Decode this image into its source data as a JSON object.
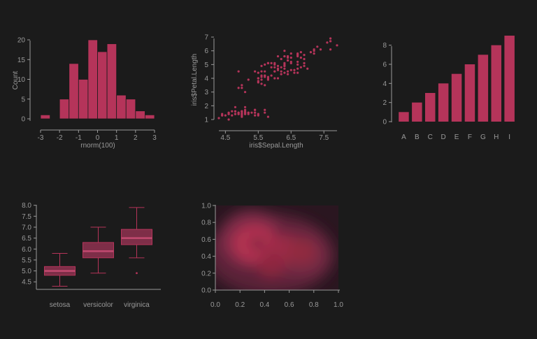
{
  "theme": {
    "background": "#1b1b1b",
    "accent": "#b5345a",
    "axis": "#9a9a9a"
  },
  "chart_data": [
    {
      "type": "bar",
      "subtype": "histogram",
      "xlabel": "rnorm(100)",
      "ylabel": "Count",
      "bins": [
        {
          "from": -3.0,
          "to": -2.5,
          "count": 1
        },
        {
          "from": -2.5,
          "to": -2.0,
          "count": 0
        },
        {
          "from": -2.0,
          "to": -1.5,
          "count": 5
        },
        {
          "from": -1.5,
          "to": -1.0,
          "count": 14
        },
        {
          "from": -1.0,
          "to": -0.5,
          "count": 10
        },
        {
          "from": -0.5,
          "to": 0.0,
          "count": 20
        },
        {
          "from": 0.0,
          "to": 0.5,
          "count": 17
        },
        {
          "from": 0.5,
          "to": 1.0,
          "count": 19
        },
        {
          "from": 1.0,
          "to": 1.5,
          "count": 6
        },
        {
          "from": 1.5,
          "to": 2.0,
          "count": 5
        },
        {
          "from": 2.0,
          "to": 2.5,
          "count": 2
        },
        {
          "from": 2.5,
          "to": 3.0,
          "count": 1
        }
      ],
      "xticks": [
        -3,
        -2,
        -1,
        0,
        1,
        2,
        3
      ],
      "yticks": [
        0,
        5,
        10,
        15,
        20
      ],
      "xlim": [
        -3,
        3
      ],
      "ylim": [
        0,
        20
      ]
    },
    {
      "type": "scatter",
      "xlabel": "iris$Sepal.Length",
      "ylabel": "iris$Petal.Length",
      "xticks": [
        4.5,
        5.5,
        6.5,
        7.5
      ],
      "yticks": [
        1,
        2,
        3,
        4,
        5,
        6,
        7
      ],
      "xlim": [
        4.3,
        7.9
      ],
      "ylim": [
        1,
        6.9
      ],
      "points": [
        [
          5.1,
          1.4
        ],
        [
          4.9,
          1.4
        ],
        [
          4.7,
          1.3
        ],
        [
          4.6,
          1.5
        ],
        [
          5.0,
          1.4
        ],
        [
          5.4,
          1.7
        ],
        [
          4.6,
          1.4
        ],
        [
          5.0,
          1.5
        ],
        [
          4.4,
          1.4
        ],
        [
          4.9,
          1.5
        ],
        [
          5.4,
          1.5
        ],
        [
          4.8,
          1.6
        ],
        [
          4.8,
          1.4
        ],
        [
          4.3,
          1.1
        ],
        [
          5.8,
          1.2
        ],
        [
          5.7,
          1.5
        ],
        [
          5.4,
          1.3
        ],
        [
          5.1,
          1.4
        ],
        [
          5.7,
          1.7
        ],
        [
          5.1,
          1.5
        ],
        [
          5.4,
          1.7
        ],
        [
          5.1,
          1.5
        ],
        [
          4.6,
          1.0
        ],
        [
          5.1,
          1.7
        ],
        [
          4.8,
          1.9
        ],
        [
          5.0,
          1.6
        ],
        [
          5.0,
          1.6
        ],
        [
          5.2,
          1.5
        ],
        [
          5.2,
          1.4
        ],
        [
          4.7,
          1.6
        ],
        [
          4.8,
          1.6
        ],
        [
          5.4,
          1.5
        ],
        [
          5.2,
          1.5
        ],
        [
          5.5,
          1.4
        ],
        [
          4.9,
          1.5
        ],
        [
          5.0,
          1.2
        ],
        [
          5.5,
          1.3
        ],
        [
          4.9,
          1.4
        ],
        [
          4.4,
          1.3
        ],
        [
          5.1,
          1.5
        ],
        [
          5.0,
          1.3
        ],
        [
          4.5,
          1.3
        ],
        [
          4.4,
          1.3
        ],
        [
          5.0,
          1.6
        ],
        [
          5.1,
          1.9
        ],
        [
          4.8,
          1.4
        ],
        [
          5.1,
          1.6
        ],
        [
          4.6,
          1.4
        ],
        [
          5.3,
          1.5
        ],
        [
          5.0,
          1.4
        ],
        [
          7.0,
          4.7
        ],
        [
          6.4,
          4.5
        ],
        [
          6.9,
          4.9
        ],
        [
          5.5,
          4.0
        ],
        [
          6.5,
          4.6
        ],
        [
          5.7,
          4.5
        ],
        [
          6.3,
          4.7
        ],
        [
          4.9,
          3.3
        ],
        [
          6.6,
          4.6
        ],
        [
          5.2,
          3.9
        ],
        [
          5.0,
          3.5
        ],
        [
          5.9,
          4.2
        ],
        [
          6.0,
          4.0
        ],
        [
          6.1,
          4.7
        ],
        [
          5.6,
          3.6
        ],
        [
          6.7,
          4.4
        ],
        [
          5.6,
          4.5
        ],
        [
          5.8,
          4.1
        ],
        [
          6.2,
          4.5
        ],
        [
          5.6,
          3.9
        ],
        [
          5.9,
          4.8
        ],
        [
          6.1,
          4.0
        ],
        [
          6.3,
          4.9
        ],
        [
          6.1,
          4.7
        ],
        [
          6.4,
          4.3
        ],
        [
          6.6,
          4.4
        ],
        [
          6.8,
          4.8
        ],
        [
          6.7,
          5.0
        ],
        [
          6.0,
          4.5
        ],
        [
          5.7,
          3.5
        ],
        [
          5.5,
          3.8
        ],
        [
          5.5,
          3.7
        ],
        [
          5.8,
          3.9
        ],
        [
          6.0,
          5.1
        ],
        [
          5.4,
          4.5
        ],
        [
          6.0,
          4.5
        ],
        [
          6.7,
          4.7
        ],
        [
          6.3,
          4.4
        ],
        [
          5.6,
          4.1
        ],
        [
          5.5,
          4.0
        ],
        [
          5.5,
          4.4
        ],
        [
          6.1,
          4.6
        ],
        [
          5.8,
          4.0
        ],
        [
          5.0,
          3.3
        ],
        [
          5.6,
          4.2
        ],
        [
          5.7,
          4.2
        ],
        [
          5.7,
          4.2
        ],
        [
          6.2,
          4.3
        ],
        [
          5.1,
          3.0
        ],
        [
          5.7,
          4.1
        ],
        [
          6.3,
          6.0
        ],
        [
          5.8,
          5.1
        ],
        [
          7.1,
          5.9
        ],
        [
          6.3,
          5.6
        ],
        [
          6.5,
          5.8
        ],
        [
          7.6,
          6.6
        ],
        [
          4.9,
          4.5
        ],
        [
          7.3,
          6.3
        ],
        [
          6.7,
          5.8
        ],
        [
          7.2,
          6.1
        ],
        [
          6.5,
          5.1
        ],
        [
          6.4,
          5.3
        ],
        [
          6.8,
          5.5
        ],
        [
          5.7,
          5.0
        ],
        [
          5.8,
          5.1
        ],
        [
          6.4,
          5.3
        ],
        [
          6.5,
          5.5
        ],
        [
          7.7,
          6.7
        ],
        [
          7.7,
          6.9
        ],
        [
          6.0,
          5.0
        ],
        [
          6.9,
          5.7
        ],
        [
          5.6,
          4.9
        ],
        [
          7.7,
          6.7
        ],
        [
          6.3,
          4.9
        ],
        [
          6.7,
          5.7
        ],
        [
          7.2,
          6.0
        ],
        [
          6.2,
          4.8
        ],
        [
          6.1,
          4.9
        ],
        [
          6.4,
          5.6
        ],
        [
          7.2,
          5.8
        ],
        [
          7.4,
          6.1
        ],
        [
          7.9,
          6.4
        ],
        [
          6.4,
          5.6
        ],
        [
          6.3,
          5.1
        ],
        [
          6.1,
          5.6
        ],
        [
          7.7,
          6.1
        ],
        [
          6.3,
          5.6
        ],
        [
          6.4,
          5.5
        ],
        [
          6.0,
          4.8
        ],
        [
          6.9,
          5.4
        ],
        [
          6.7,
          5.6
        ],
        [
          6.9,
          5.1
        ],
        [
          5.8,
          5.1
        ],
        [
          6.8,
          5.9
        ],
        [
          6.7,
          5.7
        ],
        [
          6.7,
          5.2
        ],
        [
          6.3,
          5.0
        ],
        [
          6.5,
          5.2
        ],
        [
          6.2,
          5.4
        ],
        [
          5.9,
          5.1
        ]
      ]
    },
    {
      "type": "bar",
      "categories": [
        "A",
        "B",
        "C",
        "D",
        "E",
        "F",
        "G",
        "H",
        "I"
      ],
      "values": [
        1,
        2,
        3,
        4,
        5,
        6,
        7,
        8,
        9
      ],
      "yticks": [
        0,
        2,
        4,
        6,
        8
      ],
      "ylim": [
        0,
        9
      ]
    },
    {
      "type": "box",
      "categories": [
        "setosa",
        "versicolor",
        "virginica"
      ],
      "boxes": [
        {
          "min": 4.3,
          "q1": 4.8,
          "median": 5.0,
          "q3": 5.2,
          "max": 5.8,
          "outliers": []
        },
        {
          "min": 4.9,
          "q1": 5.6,
          "median": 5.9,
          "q3": 6.3,
          "max": 7.0,
          "outliers": []
        },
        {
          "min": 5.6,
          "q1": 6.2,
          "median": 6.5,
          "q3": 6.9,
          "max": 7.9,
          "outliers": [
            4.9
          ]
        }
      ],
      "yticks": [
        "4.5",
        "5.0",
        "5.5",
        "6.0",
        "6.5",
        "7.0",
        "7.5",
        "8.0"
      ],
      "ylim": [
        4.3,
        8.0
      ]
    },
    {
      "type": "heatmap",
      "subtype": "2d-density",
      "xticks": [
        "0.0",
        "0.2",
        "0.4",
        "0.6",
        "0.8",
        "1.0"
      ],
      "yticks": [
        "0.0",
        "0.2",
        "0.4",
        "0.6",
        "0.8",
        "1.0"
      ],
      "xlim": [
        0,
        1
      ],
      "ylim": [
        0,
        1
      ],
      "peaks": [
        {
          "x": 0.32,
          "y": 0.55,
          "level": 1.0
        },
        {
          "x": 0.55,
          "y": 0.48,
          "level": 0.65
        },
        {
          "x": 0.7,
          "y": 0.45,
          "level": 0.5
        },
        {
          "x": 0.45,
          "y": 0.3,
          "level": 0.45
        }
      ]
    }
  ]
}
